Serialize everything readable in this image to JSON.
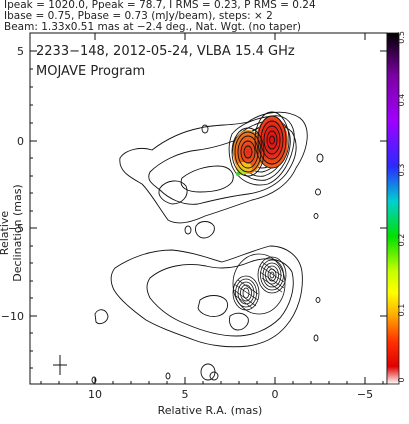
{
  "header": {
    "line1": "Ipeak = 1020.0, Ppeak = 78.7, I RMS = 0.23, P RMS = 0.24",
    "line2": "Ibase = 0.75, Pbase = 0.73 (mJy/beam), steps: × 2",
    "line3": "Beam: 1.33x0.51 mas at −2.4 deg., Nat. Wgt. (no taper)"
  },
  "plot": {
    "title_line1": "2233−148, 2012-05-24, VLBA 15.4 GHz",
    "title_line2": "MOJAVE Program",
    "xlabel": "Relative R.A. (mas)",
    "ylabel": "Relative Declination (mas)",
    "xticks": [
      "10",
      "5",
      "0",
      "−5"
    ],
    "yticks": [
      "5",
      "0",
      "−5",
      "−10"
    ]
  },
  "colorbar": {
    "ticks": [
      "0.5",
      "0.4",
      "0.3",
      "0.2",
      "0.1",
      "0"
    ]
  },
  "colors": {
    "contour": "#111111",
    "core_red": "#e8231a",
    "core_orange": "#f07a1a"
  }
}
